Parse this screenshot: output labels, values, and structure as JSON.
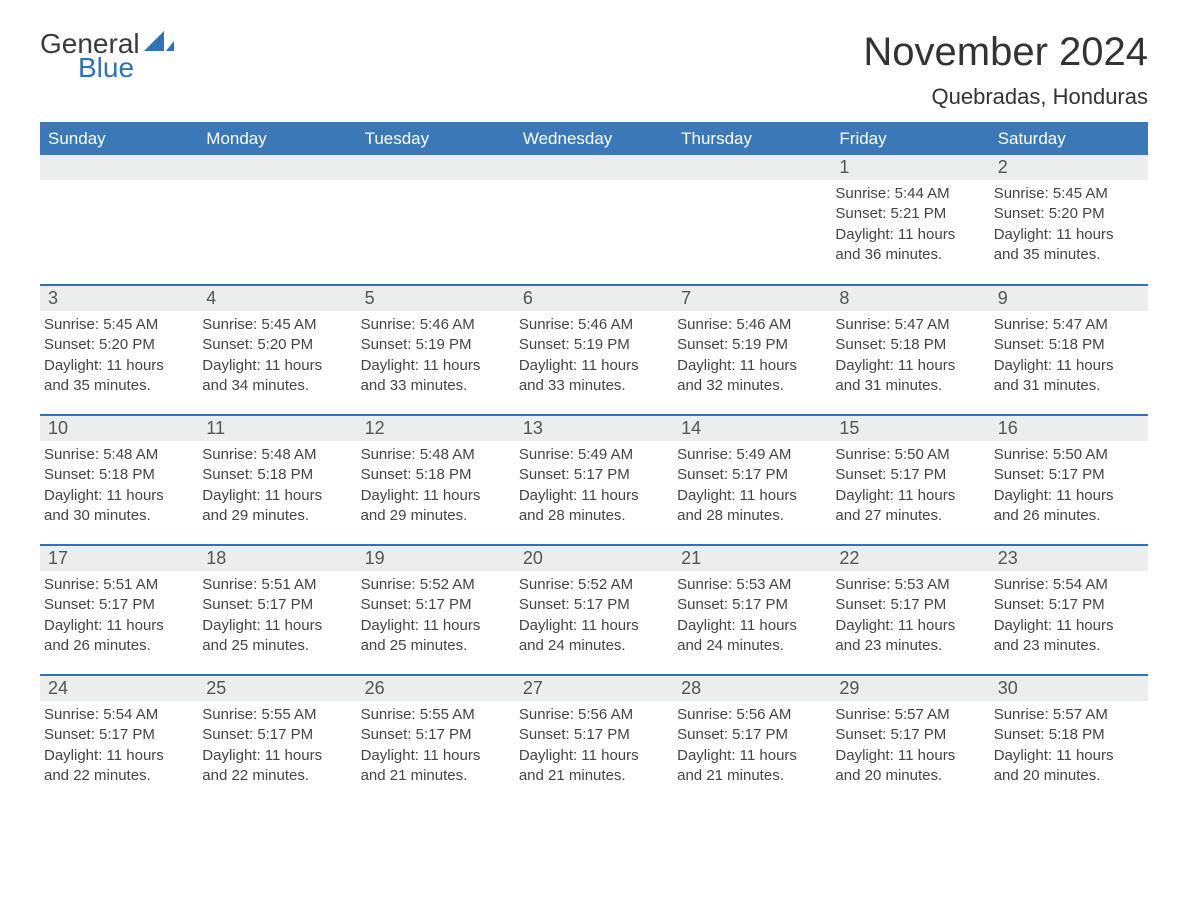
{
  "logo": {
    "word1": "General",
    "word2": "Blue",
    "text_color": "#3b3b3b",
    "accent_color": "#2f72b9"
  },
  "title": "November 2024",
  "subtitle": "Quebradas, Honduras",
  "colors": {
    "header_bg": "#3b78b8",
    "header_text": "#ffffff",
    "row_divider": "#2f72b9",
    "daynum_bg": "#eceded",
    "text": "#444444",
    "background": "#ffffff"
  },
  "days_of_week": [
    "Sunday",
    "Monday",
    "Tuesday",
    "Wednesday",
    "Thursday",
    "Friday",
    "Saturday"
  ],
  "weeks": [
    [
      {
        "empty": true
      },
      {
        "empty": true
      },
      {
        "empty": true
      },
      {
        "empty": true
      },
      {
        "empty": true
      },
      {
        "day": "1",
        "sunrise": "Sunrise: 5:44 AM",
        "sunset": "Sunset: 5:21 PM",
        "daylight": "Daylight: 11 hours and 36 minutes."
      },
      {
        "day": "2",
        "sunrise": "Sunrise: 5:45 AM",
        "sunset": "Sunset: 5:20 PM",
        "daylight": "Daylight: 11 hours and 35 minutes."
      }
    ],
    [
      {
        "day": "3",
        "sunrise": "Sunrise: 5:45 AM",
        "sunset": "Sunset: 5:20 PM",
        "daylight": "Daylight: 11 hours and 35 minutes."
      },
      {
        "day": "4",
        "sunrise": "Sunrise: 5:45 AM",
        "sunset": "Sunset: 5:20 PM",
        "daylight": "Daylight: 11 hours and 34 minutes."
      },
      {
        "day": "5",
        "sunrise": "Sunrise: 5:46 AM",
        "sunset": "Sunset: 5:19 PM",
        "daylight": "Daylight: 11 hours and 33 minutes."
      },
      {
        "day": "6",
        "sunrise": "Sunrise: 5:46 AM",
        "sunset": "Sunset: 5:19 PM",
        "daylight": "Daylight: 11 hours and 33 minutes."
      },
      {
        "day": "7",
        "sunrise": "Sunrise: 5:46 AM",
        "sunset": "Sunset: 5:19 PM",
        "daylight": "Daylight: 11 hours and 32 minutes."
      },
      {
        "day": "8",
        "sunrise": "Sunrise: 5:47 AM",
        "sunset": "Sunset: 5:18 PM",
        "daylight": "Daylight: 11 hours and 31 minutes."
      },
      {
        "day": "9",
        "sunrise": "Sunrise: 5:47 AM",
        "sunset": "Sunset: 5:18 PM",
        "daylight": "Daylight: 11 hours and 31 minutes."
      }
    ],
    [
      {
        "day": "10",
        "sunrise": "Sunrise: 5:48 AM",
        "sunset": "Sunset: 5:18 PM",
        "daylight": "Daylight: 11 hours and 30 minutes."
      },
      {
        "day": "11",
        "sunrise": "Sunrise: 5:48 AM",
        "sunset": "Sunset: 5:18 PM",
        "daylight": "Daylight: 11 hours and 29 minutes."
      },
      {
        "day": "12",
        "sunrise": "Sunrise: 5:48 AM",
        "sunset": "Sunset: 5:18 PM",
        "daylight": "Daylight: 11 hours and 29 minutes."
      },
      {
        "day": "13",
        "sunrise": "Sunrise: 5:49 AM",
        "sunset": "Sunset: 5:17 PM",
        "daylight": "Daylight: 11 hours and 28 minutes."
      },
      {
        "day": "14",
        "sunrise": "Sunrise: 5:49 AM",
        "sunset": "Sunset: 5:17 PM",
        "daylight": "Daylight: 11 hours and 28 minutes."
      },
      {
        "day": "15",
        "sunrise": "Sunrise: 5:50 AM",
        "sunset": "Sunset: 5:17 PM",
        "daylight": "Daylight: 11 hours and 27 minutes."
      },
      {
        "day": "16",
        "sunrise": "Sunrise: 5:50 AM",
        "sunset": "Sunset: 5:17 PM",
        "daylight": "Daylight: 11 hours and 26 minutes."
      }
    ],
    [
      {
        "day": "17",
        "sunrise": "Sunrise: 5:51 AM",
        "sunset": "Sunset: 5:17 PM",
        "daylight": "Daylight: 11 hours and 26 minutes."
      },
      {
        "day": "18",
        "sunrise": "Sunrise: 5:51 AM",
        "sunset": "Sunset: 5:17 PM",
        "daylight": "Daylight: 11 hours and 25 minutes."
      },
      {
        "day": "19",
        "sunrise": "Sunrise: 5:52 AM",
        "sunset": "Sunset: 5:17 PM",
        "daylight": "Daylight: 11 hours and 25 minutes."
      },
      {
        "day": "20",
        "sunrise": "Sunrise: 5:52 AM",
        "sunset": "Sunset: 5:17 PM",
        "daylight": "Daylight: 11 hours and 24 minutes."
      },
      {
        "day": "21",
        "sunrise": "Sunrise: 5:53 AM",
        "sunset": "Sunset: 5:17 PM",
        "daylight": "Daylight: 11 hours and 24 minutes."
      },
      {
        "day": "22",
        "sunrise": "Sunrise: 5:53 AM",
        "sunset": "Sunset: 5:17 PM",
        "daylight": "Daylight: 11 hours and 23 minutes."
      },
      {
        "day": "23",
        "sunrise": "Sunrise: 5:54 AM",
        "sunset": "Sunset: 5:17 PM",
        "daylight": "Daylight: 11 hours and 23 minutes."
      }
    ],
    [
      {
        "day": "24",
        "sunrise": "Sunrise: 5:54 AM",
        "sunset": "Sunset: 5:17 PM",
        "daylight": "Daylight: 11 hours and 22 minutes."
      },
      {
        "day": "25",
        "sunrise": "Sunrise: 5:55 AM",
        "sunset": "Sunset: 5:17 PM",
        "daylight": "Daylight: 11 hours and 22 minutes."
      },
      {
        "day": "26",
        "sunrise": "Sunrise: 5:55 AM",
        "sunset": "Sunset: 5:17 PM",
        "daylight": "Daylight: 11 hours and 21 minutes."
      },
      {
        "day": "27",
        "sunrise": "Sunrise: 5:56 AM",
        "sunset": "Sunset: 5:17 PM",
        "daylight": "Daylight: 11 hours and 21 minutes."
      },
      {
        "day": "28",
        "sunrise": "Sunrise: 5:56 AM",
        "sunset": "Sunset: 5:17 PM",
        "daylight": "Daylight: 11 hours and 21 minutes."
      },
      {
        "day": "29",
        "sunrise": "Sunrise: 5:57 AM",
        "sunset": "Sunset: 5:17 PM",
        "daylight": "Daylight: 11 hours and 20 minutes."
      },
      {
        "day": "30",
        "sunrise": "Sunrise: 5:57 AM",
        "sunset": "Sunset: 5:18 PM",
        "daylight": "Daylight: 11 hours and 20 minutes."
      }
    ]
  ]
}
